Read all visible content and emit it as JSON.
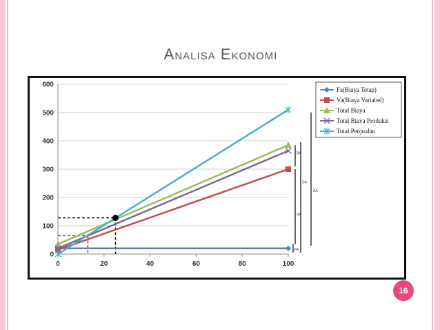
{
  "slide": {
    "title": "Analisa Ekonomi",
    "page_number": "16",
    "colors": {
      "border": "#f7c8d8",
      "badge": "#e8497a",
      "title": "#555555"
    }
  },
  "chart_data": {
    "type": "line",
    "xlim": [
      0,
      100
    ],
    "ylim": [
      0,
      600
    ],
    "xticks": [
      "0",
      "20",
      "40",
      "60",
      "80",
      "100"
    ],
    "yticks": [
      "0",
      "100",
      "200",
      "300",
      "400",
      "500",
      "600"
    ],
    "grid": "horizontal",
    "legend_position": "top-right",
    "series": [
      {
        "name": "Fa(Biaya Tetap)",
        "color": "#4f81bd",
        "marker": "diamond",
        "x": [
          0,
          100
        ],
        "y": [
          20,
          20
        ]
      },
      {
        "name": "Va(Biaya Variabel)",
        "color": "#c0504d",
        "marker": "square",
        "x": [
          0,
          100
        ],
        "y": [
          15,
          300
        ]
      },
      {
        "name": "Total Biaya",
        "color": "#9bbb59",
        "marker": "triangle",
        "x": [
          0,
          100
        ],
        "y": [
          35,
          385
        ]
      },
      {
        "name": "Total Biaya Produksi",
        "color": "#8064a2",
        "marker": "x",
        "x": [
          0,
          100
        ],
        "y": [
          20,
          365
        ]
      },
      {
        "name": "Total Penjualan",
        "color": "#4bacc6",
        "marker": "star",
        "x": [
          0,
          100
        ],
        "y": [
          0,
          510
        ]
      }
    ],
    "bep_point": {
      "x": 25,
      "y": 128,
      "color": "#000000"
    },
    "guide_lines": [
      {
        "color": "#000000",
        "x": 25,
        "y": 128
      },
      {
        "color": "#ff0000",
        "x": 13,
        "y": 65
      }
    ],
    "annotations": [
      "FA",
      "VA",
      "BA",
      "CA",
      "SA"
    ]
  }
}
